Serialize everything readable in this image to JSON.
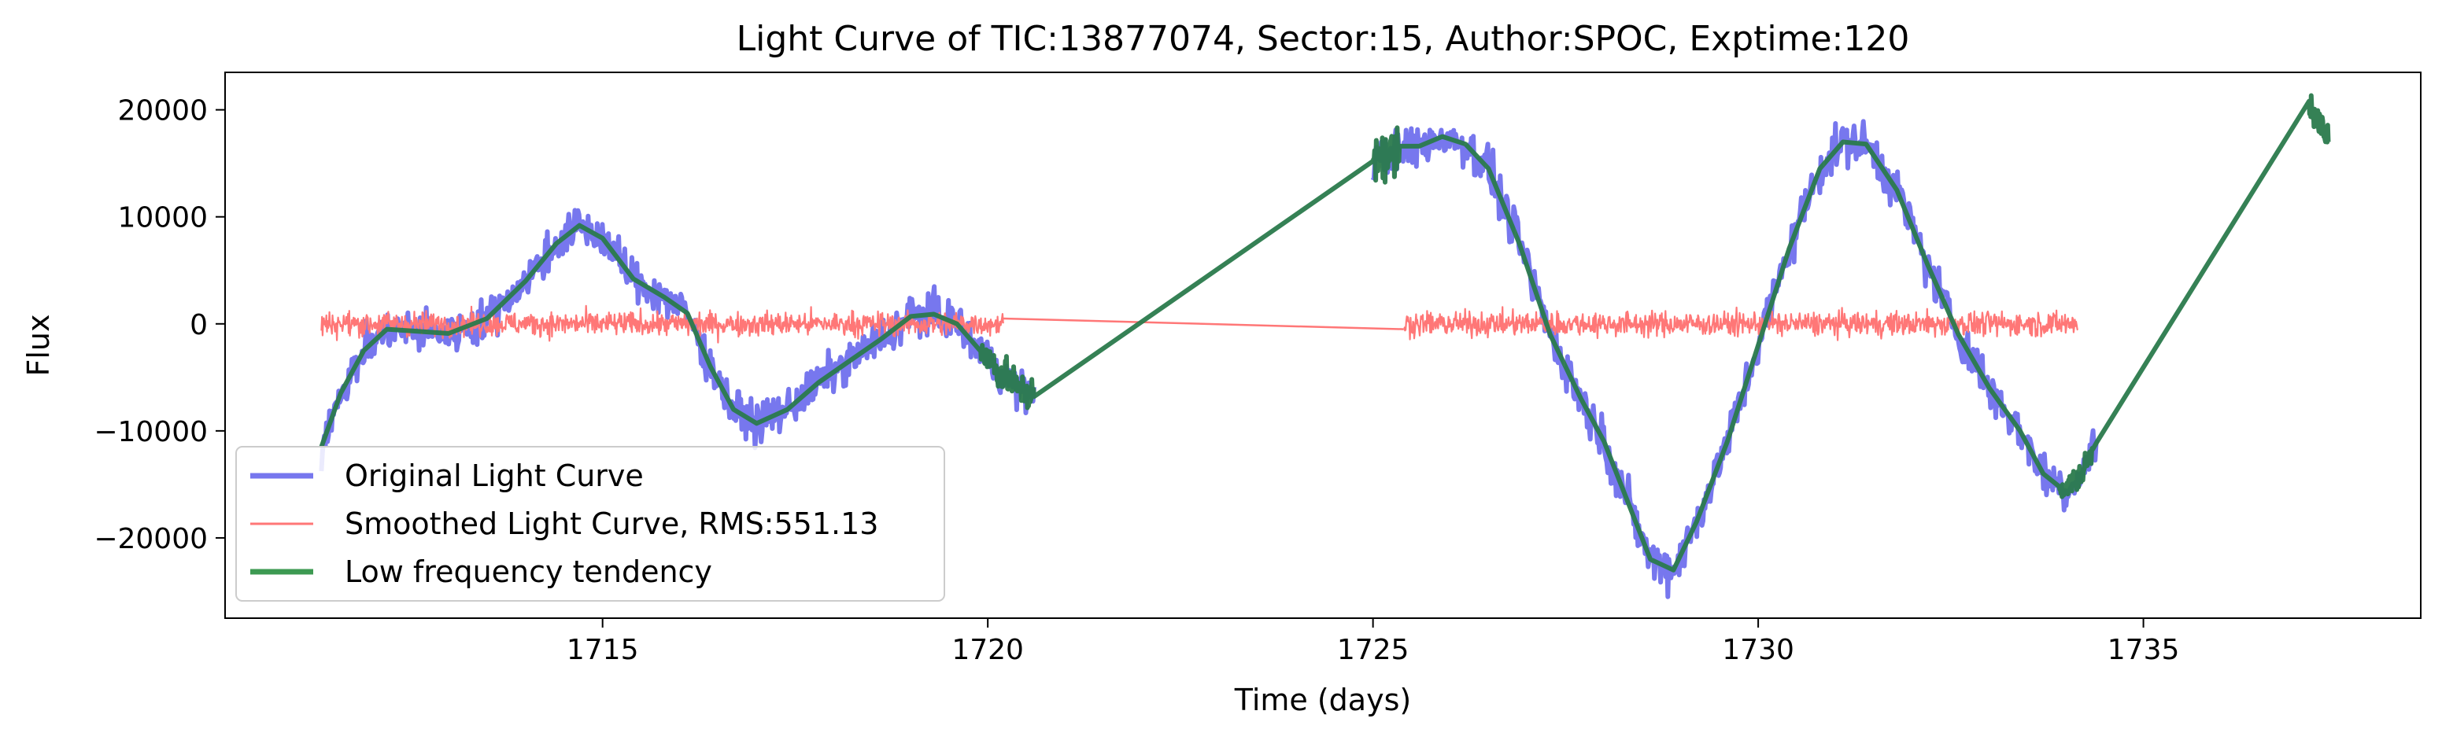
{
  "chart_data": {
    "type": "line",
    "title": "Light Curve of TIC:13877074, Sector:15, Author:SPOC, Exptime:120",
    "xlabel": "Time (days)",
    "ylabel": "Flux",
    "xlim": [
      1710.1,
      1738.6
    ],
    "ylim": [
      -27500,
      23500
    ],
    "xticks": [
      1715,
      1720,
      1725,
      1730,
      1735
    ],
    "xtick_labels": [
      "1715",
      "1720",
      "1725",
      "1730",
      "1735"
    ],
    "yticks": [
      -20000,
      -10000,
      0,
      10000,
      20000
    ],
    "ytick_labels": [
      "−20000",
      "−10000",
      "0",
      "10000",
      "20000"
    ],
    "grid": false,
    "legend_position": "lower-left",
    "series": [
      {
        "name": "Original Light Curve",
        "color": "#7777ee",
        "style": "band",
        "segments": [
          {
            "t_start": 1711.35,
            "t_end": 1720.6,
            "noise": 900,
            "x": [
              1711.35,
              1711.6,
              1711.9,
              1712.2,
              1712.6,
              1713.0,
              1713.5,
              1714.0,
              1714.4,
              1714.7,
              1715.0,
              1715.4,
              1715.8,
              1716.1,
              1716.4,
              1716.7,
              1717.0,
              1717.4,
              1717.8,
              1718.2,
              1718.6,
              1719.0,
              1719.3,
              1719.6,
              1719.9,
              1720.2,
              1720.4,
              1720.6
            ],
            "y": [
              -11500,
              -6500,
              -2500,
              -500,
              -700,
              -900,
              500,
              4000,
              7500,
              9200,
              8000,
              4200,
              2500,
              1000,
              -4000,
              -8000,
              -9300,
              -8000,
              -5500,
              -3500,
              -1500,
              700,
              900,
              0,
              -2500,
              -4800,
              -6000,
              -6800
            ]
          },
          {
            "t_start": 1725.0,
            "t_end": 1734.4,
            "noise": 1000,
            "x": [
              1725.0,
              1725.3,
              1725.6,
              1725.9,
              1726.2,
              1726.5,
              1726.9,
              1727.3,
              1727.7,
              1728.0,
              1728.3,
              1728.6,
              1728.9,
              1729.2,
              1729.6,
              1730.0,
              1730.4,
              1730.8,
              1731.1,
              1731.4,
              1731.8,
              1732.2,
              1732.6,
              1733.0,
              1733.4,
              1733.7,
              1734.0,
              1734.2,
              1734.4
            ],
            "y": [
              15200,
              16000,
              16600,
              17500,
              16800,
              14500,
              7500,
              -1000,
              -7000,
              -11000,
              -16500,
              -22000,
              -23000,
              -18500,
              -11000,
              -2000,
              7000,
              14500,
              17000,
              16800,
              12500,
              5500,
              -1000,
              -6000,
              -10000,
              -14000,
              -15500,
              -14000,
              -11000
            ]
          }
        ]
      },
      {
        "name": "Smoothed Light Curve, RMS:551.13",
        "color": "#ff7777",
        "style": "noise",
        "rms": 551.13,
        "segments": [
          {
            "t_start": 1711.35,
            "t_end": 1720.2
          },
          {
            "t_start": 1725.4,
            "t_end": 1734.15
          }
        ],
        "connector": {
          "x": [
            1720.2,
            1725.4
          ],
          "y": [
            500,
            -500
          ]
        }
      },
      {
        "name": "Low frequency tendency",
        "color": "#2a7a4c",
        "style": "line",
        "x": [
          1711.35,
          1711.6,
          1711.9,
          1712.2,
          1712.6,
          1713.0,
          1713.5,
          1714.0,
          1714.4,
          1714.7,
          1715.0,
          1715.4,
          1715.8,
          1716.1,
          1716.4,
          1716.7,
          1717.0,
          1717.4,
          1717.8,
          1718.2,
          1718.6,
          1719.0,
          1719.3,
          1719.6,
          1719.9,
          1720.2,
          1720.4,
          1720.6,
          1725.0,
          1725.3,
          1725.6,
          1725.9,
          1726.2,
          1726.5,
          1726.9,
          1727.3,
          1727.7,
          1728.0,
          1728.3,
          1728.6,
          1728.9,
          1729.2,
          1729.6,
          1730.0,
          1730.4,
          1730.8,
          1731.1,
          1731.4,
          1731.8,
          1732.2,
          1732.6,
          1733.0,
          1733.4,
          1733.7,
          1734.0,
          1734.2,
          1734.4,
          1737.15,
          1737.4
        ],
        "y": [
          -11500,
          -6500,
          -2500,
          -500,
          -700,
          -900,
          500,
          4000,
          7500,
          9200,
          8000,
          4200,
          2500,
          1000,
          -4000,
          -8000,
          -9300,
          -8000,
          -5500,
          -3500,
          -1500,
          700,
          900,
          0,
          -2500,
          -4800,
          -6000,
          -6800,
          15200,
          16000,
          16600,
          17500,
          16800,
          14500,
          7500,
          -1000,
          -7000,
          -11000,
          -16500,
          -22000,
          -23000,
          -18500,
          -11000,
          -2000,
          7000,
          14500,
          17000,
          16800,
          12500,
          5500,
          -1000,
          -6000,
          -10000,
          -14000,
          -15500,
          -14000,
          -11000,
          20800,
          17000
        ],
        "jitter_regions": [
          {
            "t_start": 1719.9,
            "t_end": 1720.6,
            "amp": 1500
          },
          {
            "t_start": 1725.0,
            "t_end": 1725.35,
            "amp": 2200
          },
          {
            "t_start": 1733.9,
            "t_end": 1734.35,
            "amp": 1200
          },
          {
            "t_start": 1737.1,
            "t_end": 1737.4,
            "amp": 1400
          }
        ]
      }
    ]
  }
}
